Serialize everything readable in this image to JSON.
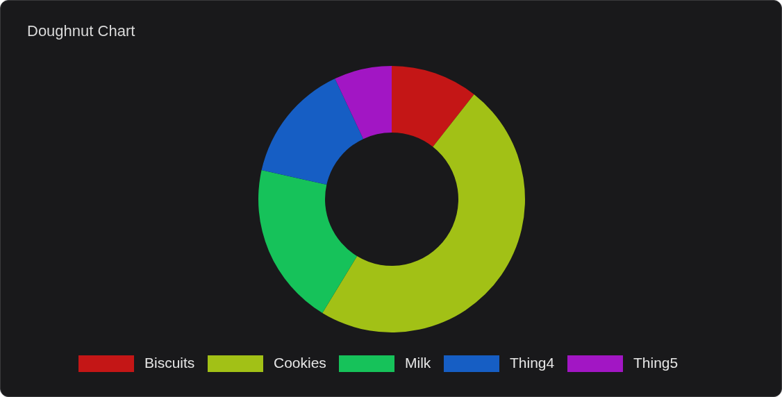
{
  "chart_data": {
    "type": "donut",
    "title": "Doughnut Chart",
    "categories": [
      "Biscuits",
      "Cookies",
      "Milk",
      "Thing4",
      "Thing5"
    ],
    "values": [
      10.6,
      48.1,
      19.8,
      14.5,
      7.0
    ],
    "colors": [
      "#c41616",
      "#a2c116",
      "#16c25a",
      "#165ec4",
      "#a216c4"
    ],
    "legend": "bottom"
  }
}
